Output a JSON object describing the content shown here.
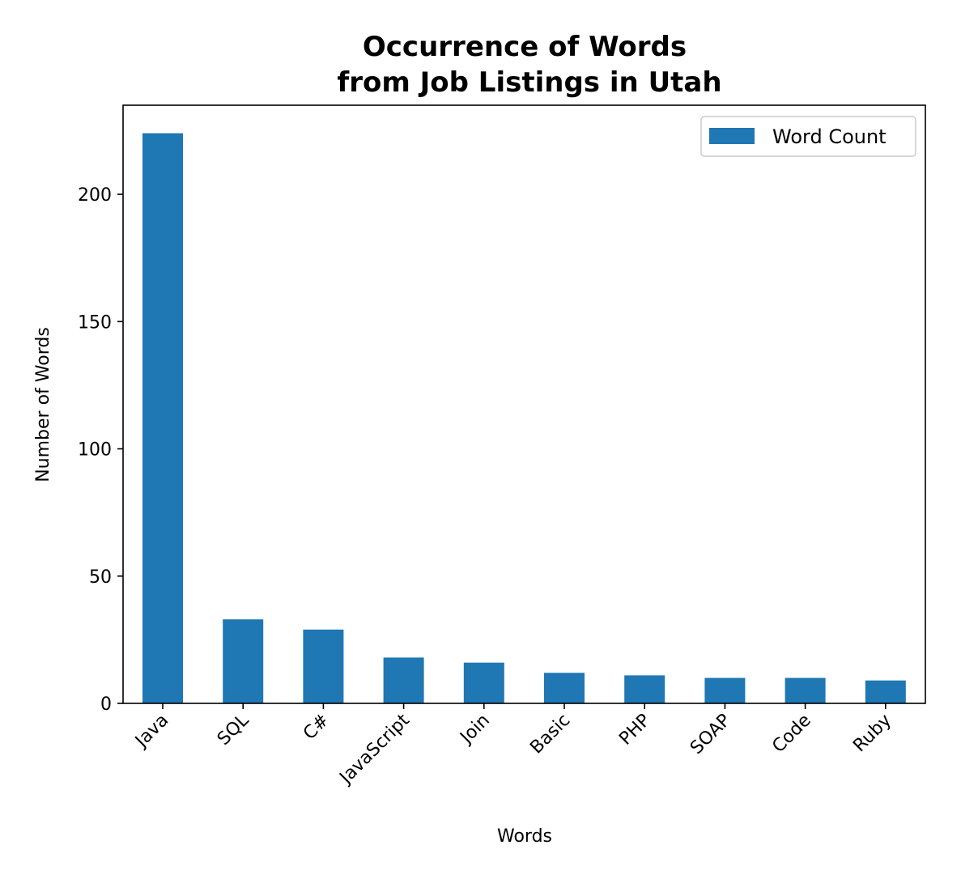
{
  "chart_data": {
    "type": "bar",
    "title_lines": [
      "Occurrence of Words",
      "from Job Listings in Utah"
    ],
    "xlabel": "Words",
    "ylabel": "Number of Words",
    "categories": [
      "Java",
      "SQL",
      "C#",
      "JavaScript",
      "Join",
      "Basic",
      "PHP",
      "SOAP",
      "Code",
      "Ruby"
    ],
    "series": [
      {
        "name": "Word Count",
        "values": [
          224,
          33,
          29,
          18,
          16,
          12,
          11,
          10,
          10,
          9
        ],
        "color": "#1f77b4"
      }
    ],
    "ylim": [
      0,
      235
    ],
    "yticks": [
      0,
      50,
      100,
      150,
      200
    ],
    "grid": false,
    "legend_position": "top-right"
  }
}
